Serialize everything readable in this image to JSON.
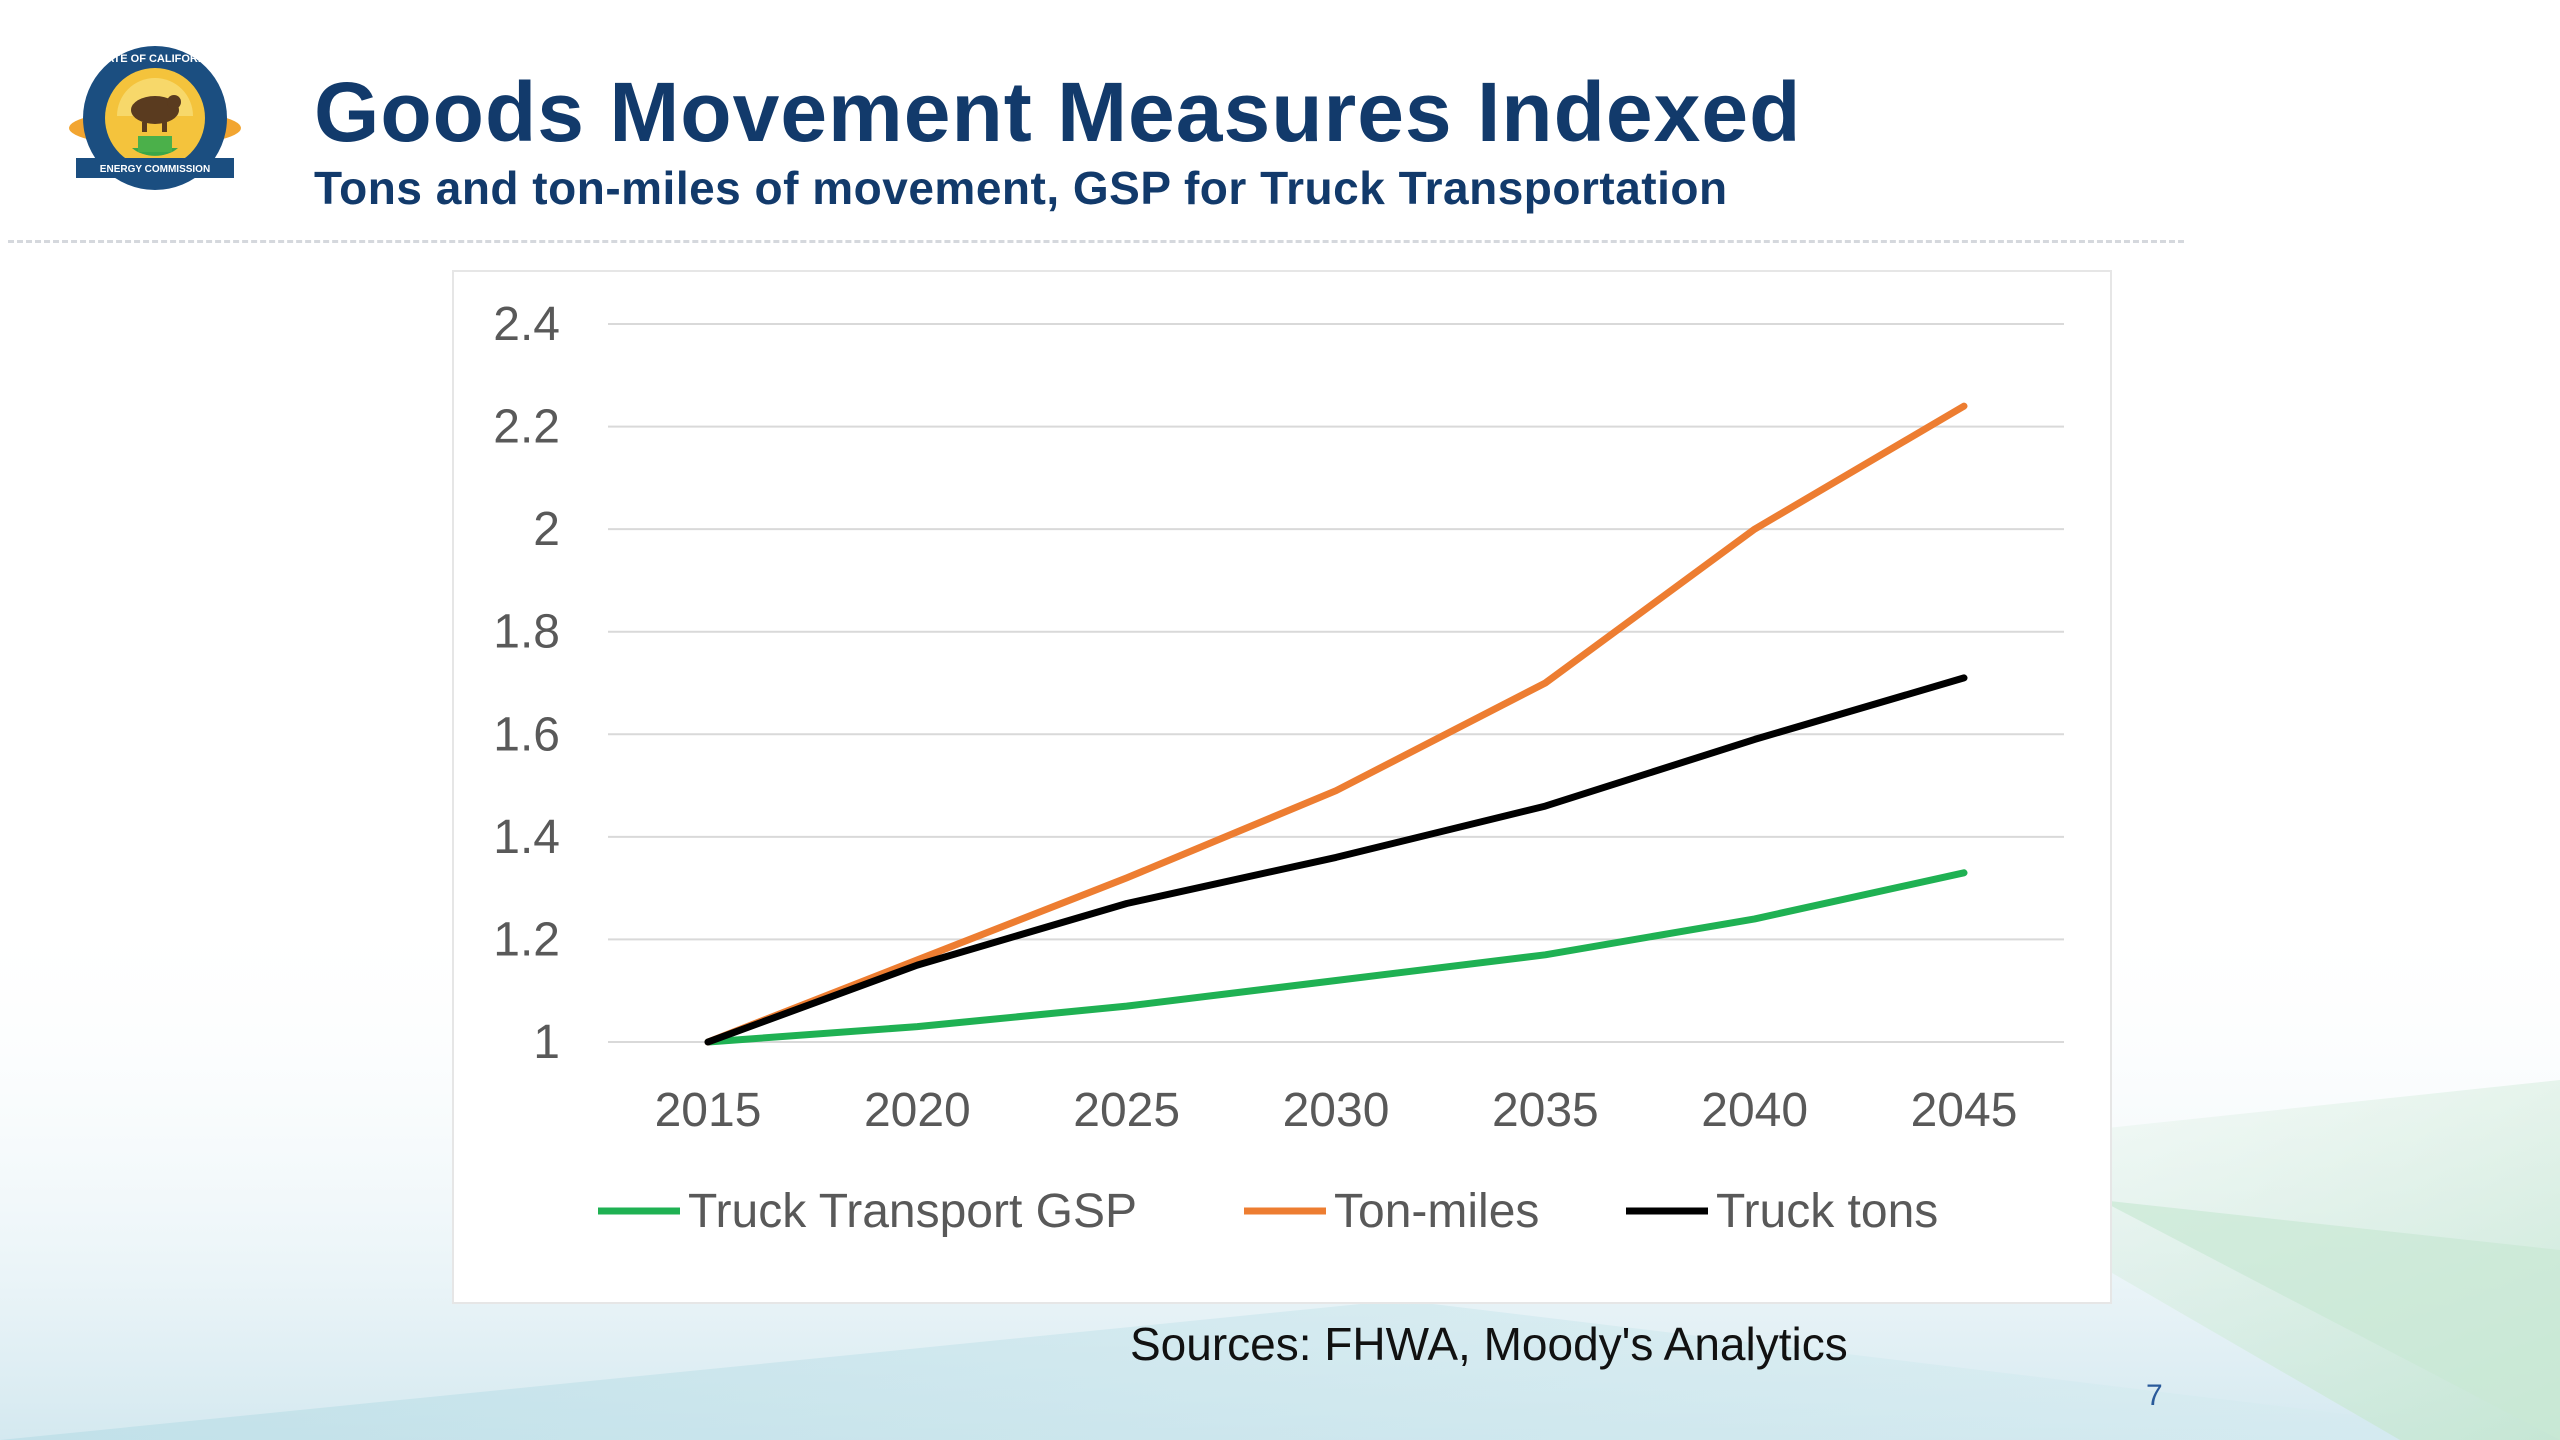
{
  "slide": {
    "title": "Goods Movement Measures Indexed",
    "subtitle": "Tons and ton-miles of movement, GSP for Truck Transportation",
    "sources": "Sources: FHWA, Moody's Analytics",
    "page_number": "7",
    "logo": {
      "icon": "state-of-california-energy-commission-seal",
      "text_top": "STATE OF CALIFORNIA",
      "text_bottom": "ENERGY COMMISSION"
    }
  },
  "colors": {
    "title": "#123a6b",
    "grid": "#d9d9d9",
    "axis_text": "#595959"
  },
  "chart_data": {
    "type": "line",
    "x": [
      2015,
      2020,
      2025,
      2030,
      2035,
      2040,
      2045
    ],
    "ylim": [
      1,
      2.4
    ],
    "yticks": [
      "1",
      "1.2",
      "1.4",
      "1.6",
      "1.8",
      "2",
      "2.2",
      "2.4"
    ],
    "xticks": [
      "2015",
      "2020",
      "2025",
      "2030",
      "2035",
      "2040",
      "2045"
    ],
    "grid": true,
    "legend_position": "bottom",
    "series": [
      {
        "name": "Truck Transport GSP",
        "color": "#1fb153",
        "values": [
          1.0,
          1.03,
          1.07,
          1.12,
          1.17,
          1.24,
          1.33
        ]
      },
      {
        "name": "Ton-miles",
        "color": "#ed7d31",
        "values": [
          1.0,
          1.16,
          1.32,
          1.49,
          1.7,
          2.0,
          2.24
        ]
      },
      {
        "name": "Truck tons",
        "color": "#000000",
        "values": [
          1.0,
          1.15,
          1.27,
          1.36,
          1.46,
          1.59,
          1.71
        ]
      }
    ]
  }
}
